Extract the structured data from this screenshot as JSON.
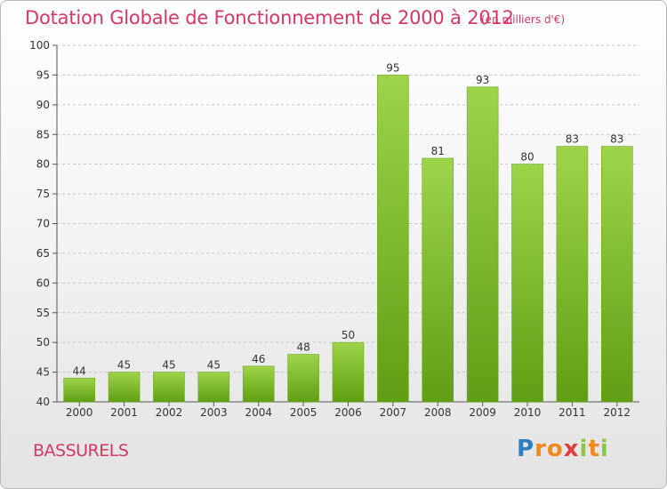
{
  "chart_data": {
    "type": "bar",
    "title": "Dotation Globale de Fonctionnement de 2000 à 2012",
    "unit_label": "(en milliers d'€)",
    "categories": [
      "2000",
      "2001",
      "2002",
      "2003",
      "2004",
      "2005",
      "2006",
      "2007",
      "2008",
      "2009",
      "2010",
      "2011",
      "2012"
    ],
    "values": [
      44,
      45,
      45,
      45,
      46,
      48,
      50,
      95,
      81,
      93,
      80,
      83,
      83
    ],
    "ylim": [
      40,
      100
    ],
    "yticks": [
      40,
      45,
      50,
      55,
      60,
      65,
      70,
      75,
      80,
      85,
      90,
      95,
      100
    ],
    "grid": "horizontal dashed",
    "bar_color": "#7fc22a"
  },
  "footer": {
    "place": "BASSURELS",
    "logo_letters": [
      "P",
      "r",
      "o",
      "x",
      "i",
      "t",
      "i"
    ],
    "logo_colors": [
      "#2d7fc1",
      "#f08a1e",
      "#f08a1e",
      "#e23b3b",
      "#8dc63f",
      "#f08a1e",
      "#8dc63f"
    ]
  }
}
